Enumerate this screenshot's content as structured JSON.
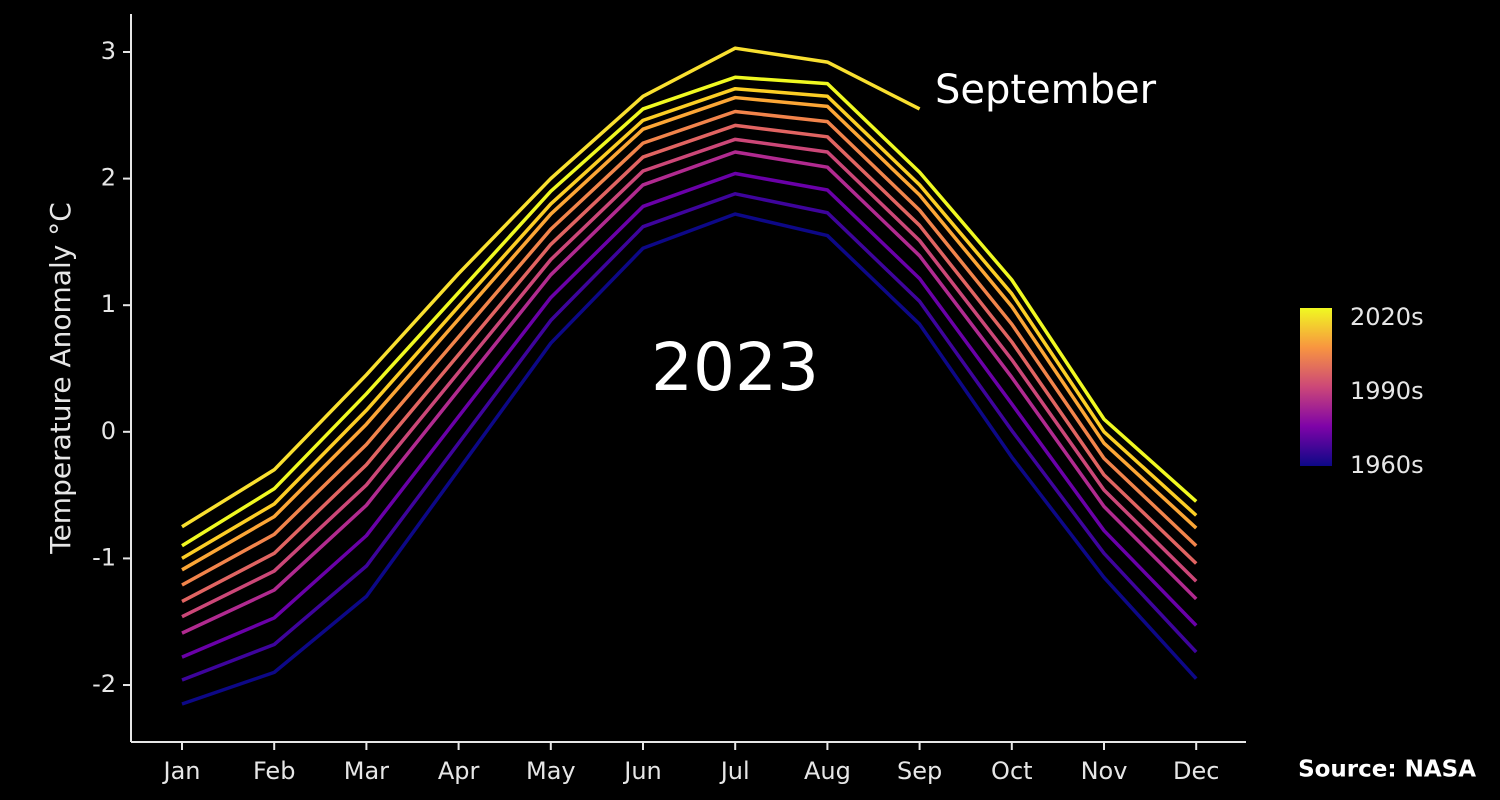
{
  "chart_data": {
    "type": "line",
    "y_label": "Temperature Anomaly °C",
    "categories": [
      "Jan",
      "Feb",
      "Mar",
      "Apr",
      "May",
      "Jun",
      "Jul",
      "Aug",
      "Sep",
      "Oct",
      "Nov",
      "Dec"
    ],
    "ylim": [
      -2.45,
      3.3
    ],
    "yticks": [
      3,
      2,
      1,
      0,
      -1,
      -2
    ],
    "series": [
      {
        "color": "#0d0887",
        "values": [
          -2.15,
          -1.9,
          -1.3,
          -0.3,
          0.7,
          1.45,
          1.72,
          1.55,
          0.85,
          -0.2,
          -1.15,
          -1.95
        ]
      },
      {
        "color": "#3e049c",
        "values": [
          -1.96,
          -1.68,
          -1.06,
          -0.09,
          0.88,
          1.62,
          1.88,
          1.73,
          1.03,
          0.01,
          -0.96,
          -1.74
        ]
      },
      {
        "color": "#6a00a8",
        "values": [
          -1.78,
          -1.47,
          -0.82,
          0.12,
          1.06,
          1.78,
          2.04,
          1.91,
          1.21,
          0.22,
          -0.78,
          -1.53
        ]
      },
      {
        "color": "#b12a90",
        "values": [
          -1.59,
          -1.25,
          -0.58,
          0.33,
          1.24,
          1.95,
          2.21,
          2.09,
          1.39,
          0.43,
          -0.59,
          -1.32
        ]
      },
      {
        "color": "#cc4778",
        "values": [
          -1.46,
          -1.1,
          -0.42,
          0.47,
          1.36,
          2.06,
          2.31,
          2.21,
          1.51,
          0.57,
          -0.46,
          -1.18
        ]
      },
      {
        "color": "#e16462",
        "values": [
          -1.34,
          -0.96,
          -0.26,
          0.61,
          1.48,
          2.17,
          2.42,
          2.33,
          1.63,
          0.71,
          -0.34,
          -1.04
        ]
      },
      {
        "color": "#f2844b",
        "values": [
          -1.21,
          -0.81,
          -0.1,
          0.75,
          1.6,
          2.28,
          2.53,
          2.45,
          1.75,
          0.85,
          -0.21,
          -0.9
        ]
      },
      {
        "color": "#fca636",
        "values": [
          -1.09,
          -0.67,
          0.06,
          0.89,
          1.72,
          2.39,
          2.64,
          2.57,
          1.87,
          0.99,
          -0.09,
          -0.76
        ]
      },
      {
        "color": "#fcce25",
        "values": [
          -1.0,
          -0.57,
          0.17,
          0.99,
          1.8,
          2.46,
          2.71,
          2.65,
          1.95,
          1.09,
          0.0,
          -0.66
        ]
      },
      {
        "color": "#f0f921",
        "values": [
          -0.9,
          -0.45,
          0.3,
          1.1,
          1.9,
          2.55,
          2.8,
          2.75,
          2.05,
          1.2,
          0.1,
          -0.55
        ]
      },
      {
        "color": "#f9e030",
        "values": [
          -0.75,
          -0.3,
          0.45,
          1.25,
          2.0,
          2.65,
          3.03,
          2.92,
          2.55,
          null,
          null,
          null
        ]
      }
    ],
    "colorbar": {
      "labels": [
        "2020s",
        "1990s",
        "1960s"
      ],
      "colors": [
        "#f0f921",
        "#f89540",
        "#cc4778",
        "#7e03a8",
        "#0d0887"
      ]
    },
    "annotations": [
      "September",
      "2023"
    ],
    "source": "Source: NASA"
  }
}
